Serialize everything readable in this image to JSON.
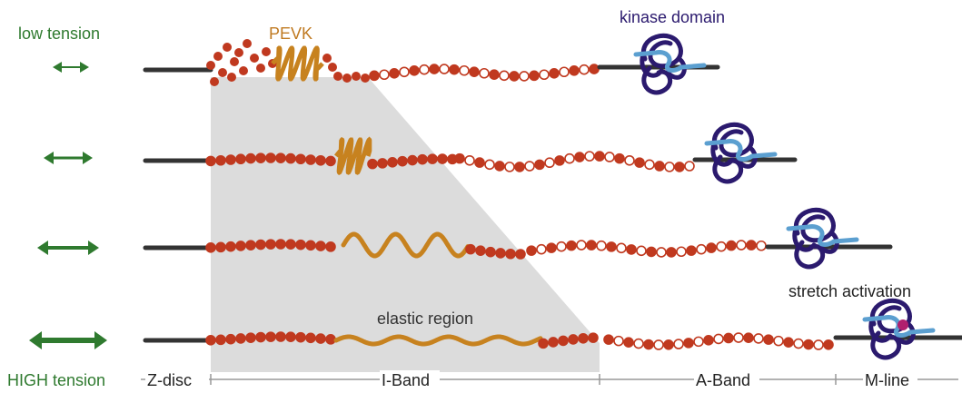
{
  "tension": {
    "low": "low tension",
    "high": "HIGH tension"
  },
  "annotations": {
    "pevk": "PEVK",
    "kinase": "kinase domain",
    "stretch": "stretch activation",
    "elastic": "elastic region"
  },
  "bands": [
    "Z-disc",
    "I-Band",
    "A-Band",
    "M-line"
  ]
}
